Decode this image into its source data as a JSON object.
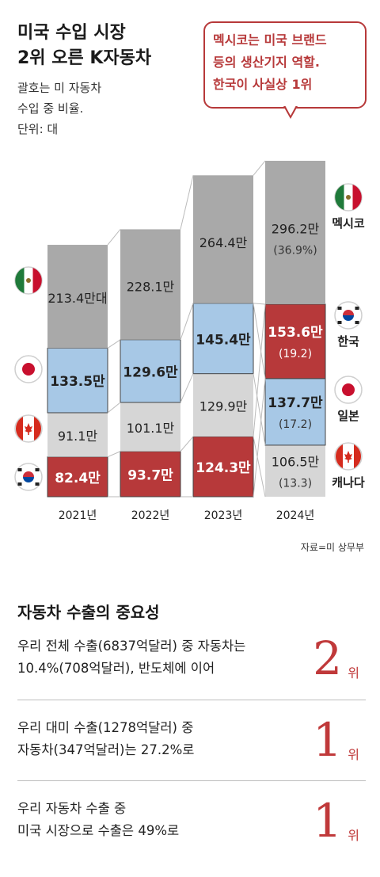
{
  "header": {
    "title_line1": "미국 수입 시장",
    "title_line2": "2위 오른 K자동차",
    "note_line1": "괄호는 미 자동차",
    "note_line2": "수입 중 비율.",
    "unit_line": "단위: 대"
  },
  "callout": {
    "line1": "멕시코는 미국 브랜드",
    "line2": "등의 생산기지 역할.",
    "line3": "한국이 사실상 1위"
  },
  "colors": {
    "mexico": "#a9a9a9",
    "korea": "#b7393a",
    "japan": "#a7c8e6",
    "canada": "#d6d6d6",
    "connector": "#bbbbbb"
  },
  "chart_data": {
    "type": "bar",
    "stacked": true,
    "categories": [
      "2021년",
      "2022년",
      "2023년",
      "2024년"
    ],
    "series": [
      {
        "name": "한국",
        "values": [
          824000,
          937000,
          1243000,
          1536000
        ],
        "labels": [
          "82.4만",
          "93.7만",
          "124.3만",
          "153.6만"
        ],
        "shares": [
          "",
          "",
          "",
          "(19.2)"
        ]
      },
      {
        "name": "캐나다",
        "values": [
          911000,
          1011000,
          1299000,
          1065000
        ],
        "labels": [
          "91.1만",
          "101.1만",
          "129.9만",
          "106.5만"
        ],
        "shares": [
          "",
          "",
          "",
          "(13.3)"
        ]
      },
      {
        "name": "일본",
        "values": [
          1335000,
          1296000,
          1454000,
          1377000
        ],
        "labels": [
          "133.5만",
          "129.6만",
          "145.4만",
          "137.7만"
        ],
        "shares": [
          "",
          "",
          "",
          "(17.2)"
        ]
      },
      {
        "name": "멕시코",
        "values": [
          2134000,
          2281000,
          2644000,
          2962000
        ],
        "labels": [
          "213.4만대",
          "228.1만",
          "264.4만",
          "296.2만"
        ],
        "shares": [
          "",
          "",
          "",
          "(36.9%)"
        ]
      }
    ],
    "order_by_year": [
      [
        "한국",
        "캐나다",
        "일본",
        "멕시코"
      ],
      [
        "한국",
        "캐나다",
        "일본",
        "멕시코"
      ],
      [
        "한국",
        "캐나다",
        "일본",
        "멕시코"
      ],
      [
        "캐나다",
        "일본",
        "한국",
        "멕시코"
      ]
    ],
    "left_flags": [
      "멕시코",
      "일본",
      "캐나다",
      "한국"
    ],
    "right_legend": [
      "멕시코",
      "한국",
      "일본",
      "캐나다"
    ],
    "source": "자료=미 상무부"
  },
  "section": {
    "title": "자동차 수출의 중요성",
    "items": [
      {
        "line1": "우리 전체 수출(6837억달러) 중 자동차는",
        "line2": "10.4%(708억달러), 반도체에 이어",
        "rank": "2",
        "unit": "위"
      },
      {
        "line1": "우리 대미 수출(1278억달러) 중",
        "line2": "자동차(347억달러)는 27.2%로",
        "rank": "1",
        "unit": "위"
      },
      {
        "line1": "우리 자동차  수출 중",
        "line2": "미국 시장으로 수출은 49%로",
        "rank": "1",
        "unit": "위"
      }
    ]
  }
}
